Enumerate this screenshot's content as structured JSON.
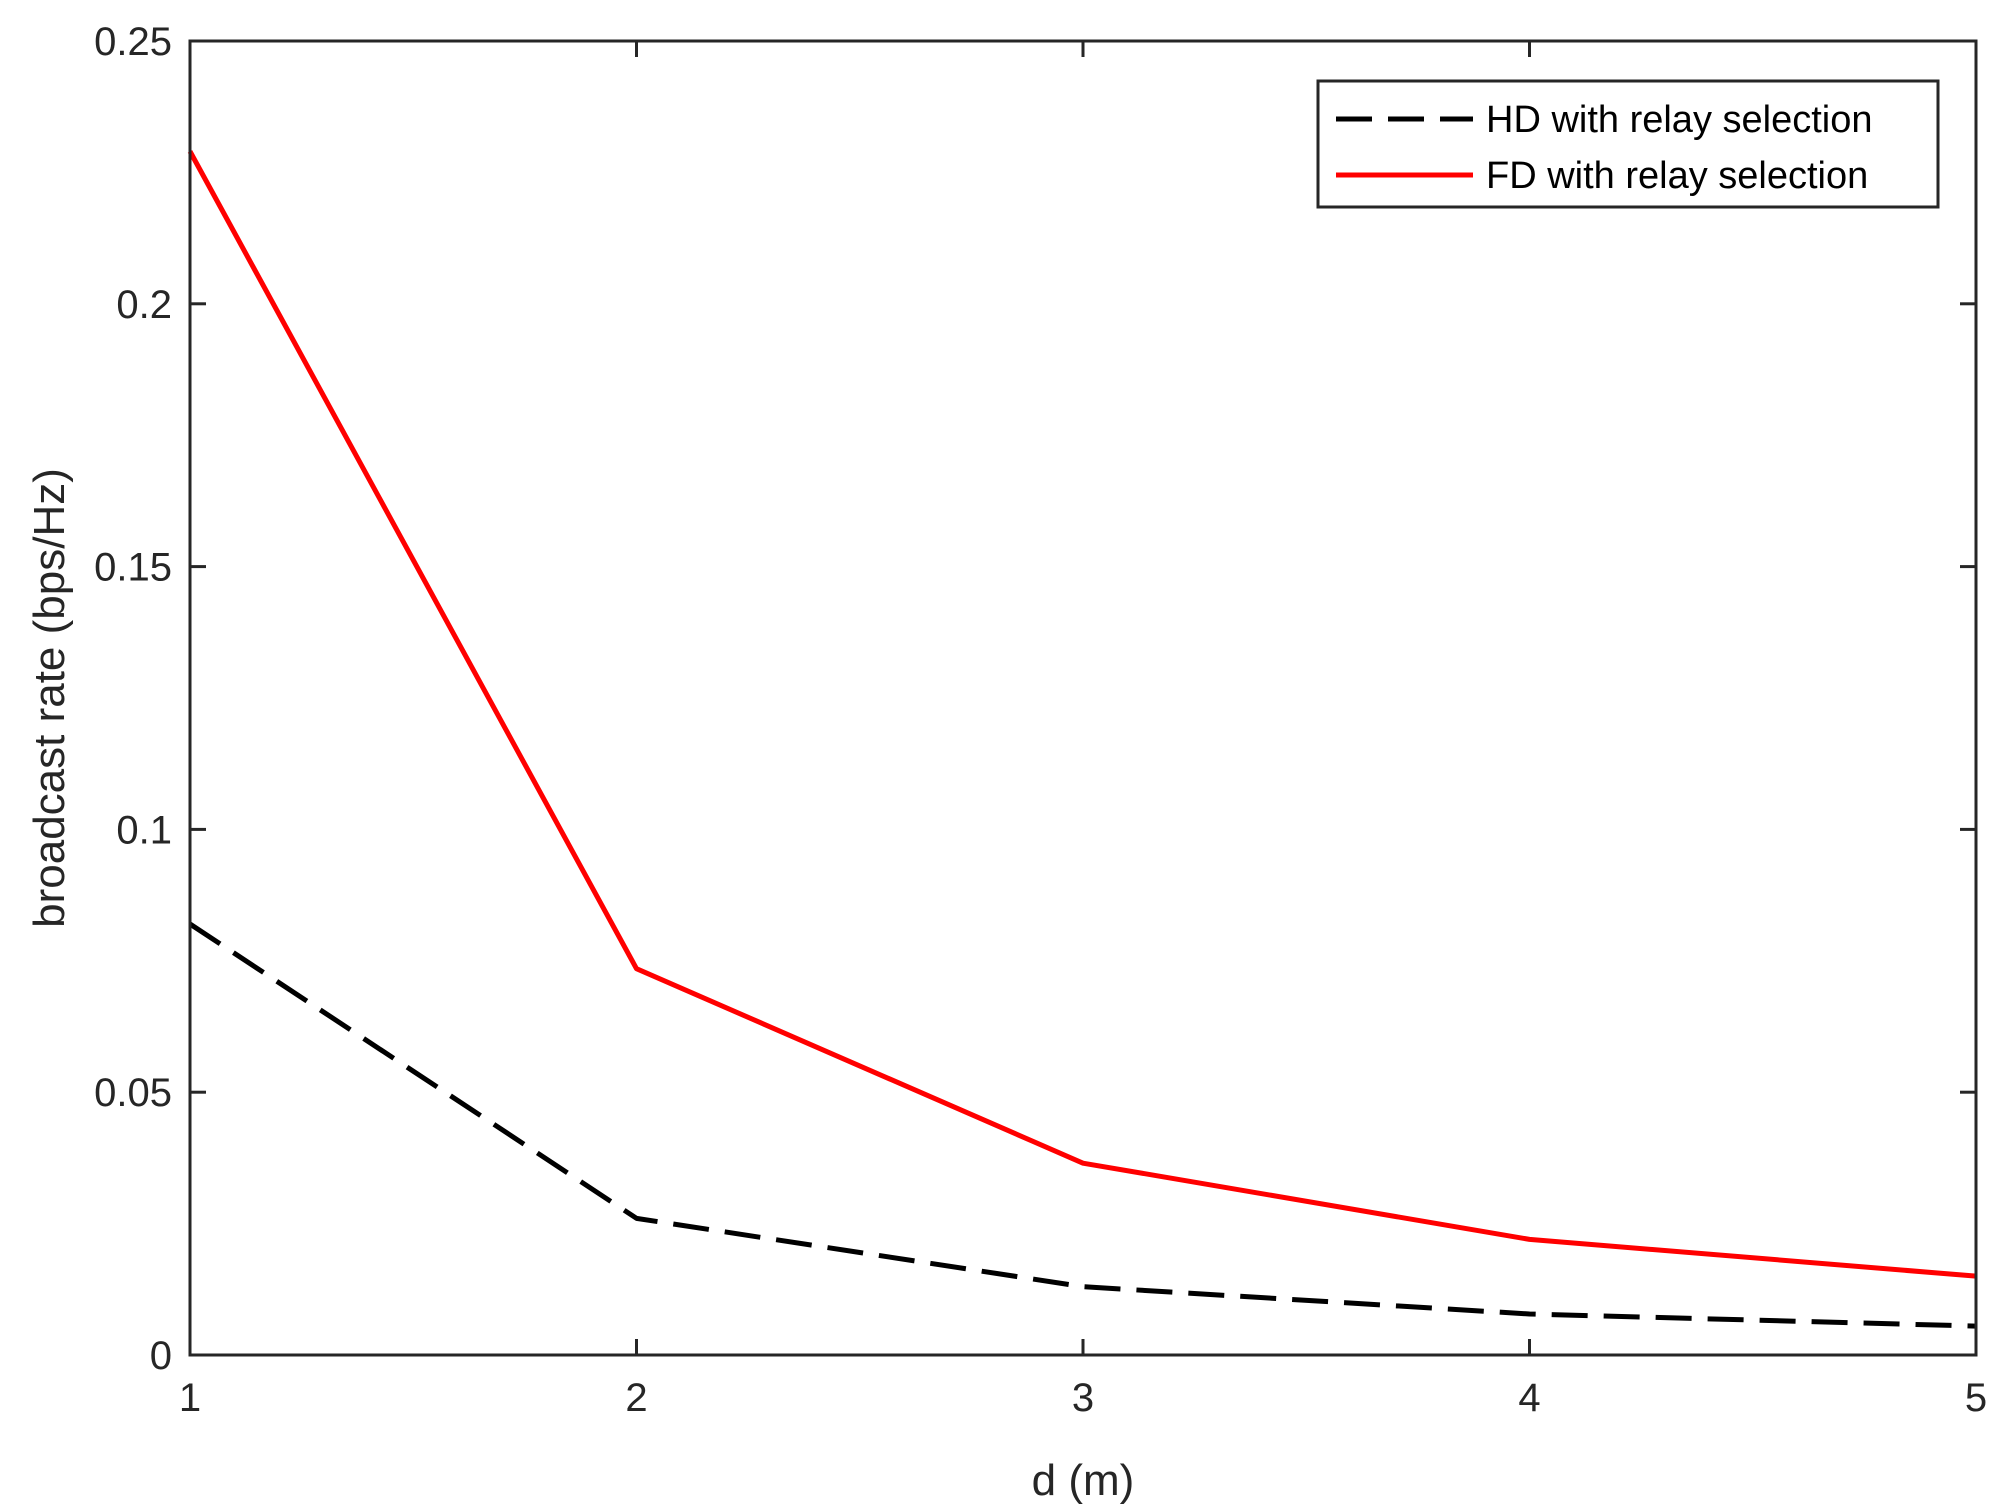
{
  "chart_data": {
    "type": "line",
    "title": "",
    "xlabel": "d (m)",
    "ylabel": "broadcast rate (bps/Hz)",
    "xlim": [
      1,
      5
    ],
    "ylim": [
      0,
      0.25
    ],
    "xticks": [
      1,
      2,
      3,
      4,
      5
    ],
    "xtick_labels": [
      "1",
      "2",
      "3",
      "4",
      "5"
    ],
    "yticks": [
      0,
      0.05,
      0.1,
      0.15,
      0.2,
      0.25
    ],
    "ytick_labels": [
      "0",
      "0.05",
      "0.1",
      "0.15",
      "0.2",
      "0.25"
    ],
    "grid": false,
    "legend_position": "top-right",
    "x": [
      1,
      2,
      3,
      4,
      5
    ],
    "series": [
      {
        "name": "HD with relay selection",
        "values": [
          0.082,
          0.026,
          0.013,
          0.0078,
          0.0055
        ],
        "color": "#000000",
        "style": "dashed"
      },
      {
        "name": "FD with relay selection",
        "values": [
          0.229,
          0.0735,
          0.0365,
          0.022,
          0.015
        ],
        "color": "#ff0000",
        "style": "solid"
      }
    ]
  }
}
